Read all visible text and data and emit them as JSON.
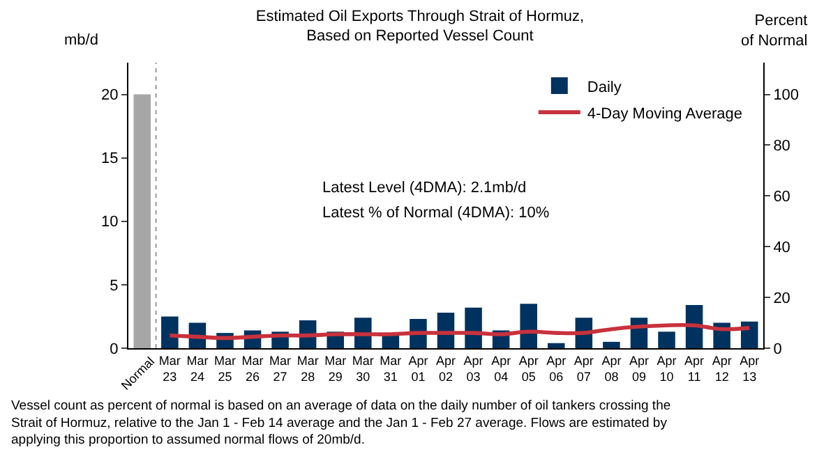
{
  "chart_data": {
    "type": "bar",
    "title": "Estimated Oil Exports Through Strait of Hormuz, Based on Reported Vessel Count",
    "ylabel": "mb/d",
    "y2label": "Percent of Normal",
    "categories": [
      "Normal",
      "Mar 23",
      "Mar 24",
      "Mar 25",
      "Mar 26",
      "Mar 27",
      "Mar 28",
      "Mar 29",
      "Mar 30",
      "Mar 31",
      "Apr 01",
      "Apr 02",
      "Apr 03",
      "Apr 04",
      "Apr 05",
      "Apr 06",
      "Apr 07",
      "Apr 08",
      "Apr 09",
      "Apr 10",
      "Apr 11",
      "Apr 12",
      "Apr 13"
    ],
    "series": [
      {
        "color": "#a6a6a6",
        "values": [
          20,
          null,
          null,
          null,
          null,
          null,
          null,
          null,
          null,
          null,
          null,
          null,
          null,
          null,
          null,
          null,
          null,
          null,
          null,
          null,
          null,
          null,
          null
        ]
      },
      {
        "name": "Daily",
        "color": "#00325f",
        "values": [
          null,
          2.5,
          2.0,
          1.2,
          1.4,
          1.3,
          2.2,
          1.3,
          2.4,
          1.0,
          2.3,
          2.8,
          3.2,
          1.4,
          3.5,
          0.4,
          2.4,
          0.5,
          2.4,
          1.3,
          3.4,
          2.0,
          2.1
        ]
      },
      {
        "name": "4-Day Moving Average",
        "type": "line",
        "color": "#c8323c",
        "values": [
          null,
          1.0,
          0.9,
          0.8,
          0.9,
          1.0,
          1.0,
          1.1,
          1.1,
          1.1,
          1.2,
          1.2,
          1.2,
          1.1,
          1.3,
          1.2,
          1.2,
          1.5,
          1.7,
          1.8,
          1.8,
          1.5,
          1.6
        ]
      }
    ],
    "ylim": [
      0,
      22.5
    ],
    "yticks": [
      0,
      5,
      10,
      15,
      20
    ],
    "y2lim": [
      0,
      112.5
    ],
    "y2ticks": [
      0,
      20,
      40,
      60,
      80,
      100
    ],
    "grid": false,
    "legend": "top right",
    "marker": "none",
    "line_style": "solid",
    "annotations": [
      "Latest Level (4DMA): 2.1mb/d",
      "Latest % of Normal (4DMA): 10%",
      "Vessel count as percent of normal is based on an average of data on the daily number of oil tankers crossing the Strait of Hormuz, relative to the Jan 1 - Feb 14 average and the Jan 1 - Feb 27 average. Flows are estimated by applying this proportion to assumed normal flows of 20mb/d."
    ]
  }
}
